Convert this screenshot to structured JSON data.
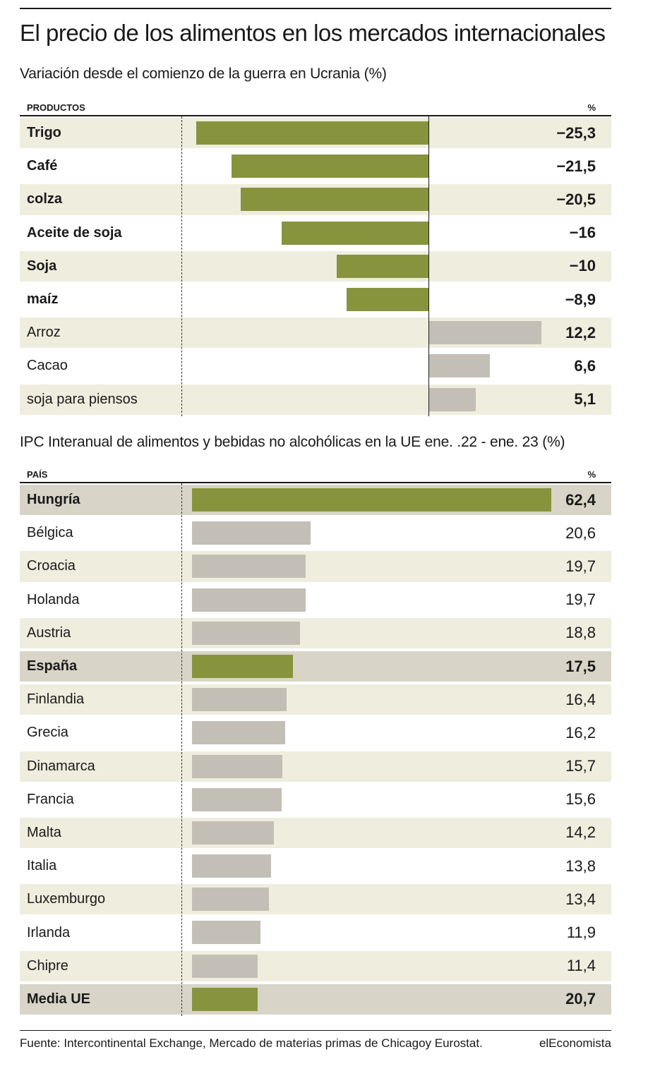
{
  "title": "El precio de los alimentos en los mercados internacionales",
  "brand": "elEconomista",
  "source": "Fuente: Intercontinental Exchange, Mercado de materias primas de Chicagoy Eurostat.",
  "colors": {
    "highlight_bar": "#87943d",
    "other_bar": "#c3bfb6",
    "stripe": "#efedde",
    "highlight_row": "#d8d5c8"
  },
  "chart_data": [
    {
      "type": "bar",
      "orientation": "horizontal",
      "title": "Variación desde el comienzo de la guerra en Ucrania (%)",
      "category_header": "PRODUCTOS",
      "value_header": "%",
      "categories": [
        "Trigo",
        "Café",
        "colza",
        "Aceite de soja",
        "Soja",
        "maíz",
        "Arroz",
        "Cacao",
        "soja para piensos"
      ],
      "values": [
        -25.3,
        -21.5,
        -20.5,
        -16,
        -10,
        -8.9,
        12.2,
        6.6,
        5.1
      ],
      "value_labels": [
        "−25,3",
        "−21,5",
        "−20,5",
        "−16",
        "−10",
        "−8,9",
        "12,2",
        "6,6",
        "5,1"
      ],
      "highlighted": [
        "Trigo",
        "Café",
        "colza",
        "Aceite de soja",
        "Soja",
        "maíz"
      ]
    },
    {
      "type": "bar",
      "orientation": "horizontal",
      "title": "IPC Interanual de alimentos y bebidas no alcohólicas en la UE ene. .22 - ene. 23 (%)",
      "category_header": "PAÍS",
      "value_header": "%",
      "categories": [
        "Hungría",
        "Bélgica",
        "Croacia",
        "Holanda",
        "Austria",
        "España",
        "Finlandia",
        "Grecia",
        "Dinamarca",
        "Francia",
        "Malta",
        "Italia",
        "Luxemburgo",
        "Irlanda",
        "Chipre",
        "Media UE"
      ],
      "values": [
        62.4,
        20.6,
        19.7,
        19.7,
        18.8,
        17.5,
        16.4,
        16.2,
        15.7,
        15.6,
        14.2,
        13.8,
        13.4,
        11.9,
        11.4,
        20.7
      ],
      "value_labels": [
        "62,4",
        "20,6",
        "19,7",
        "19,7",
        "18,8",
        "17,5",
        "16,4",
        "16,2",
        "15,7",
        "15,6",
        "14,2",
        "13,8",
        "13,4",
        "11,9",
        "11,4",
        "20,7"
      ],
      "highlighted": [
        "Hungría",
        "España",
        "Media UE"
      ]
    }
  ]
}
